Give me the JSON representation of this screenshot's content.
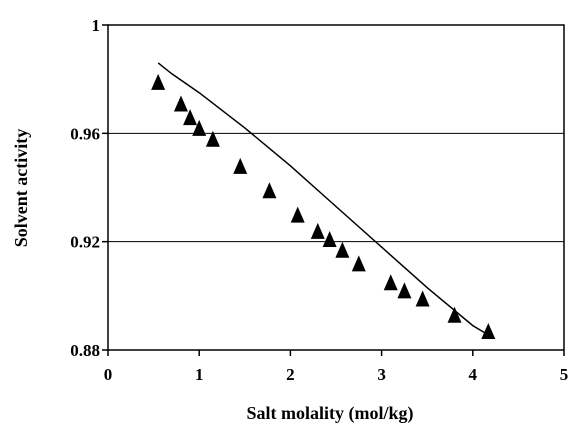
{
  "chart_data": {
    "type": "scatter",
    "xlabel": "Salt molality (mol/kg)",
    "ylabel": "Solvent activity",
    "xlim": [
      0,
      5
    ],
    "ylim": [
      0.88,
      1.0
    ],
    "x_ticks": [
      "0",
      "1",
      "2",
      "3",
      "4",
      "5"
    ],
    "y_ticks": [
      "0.88",
      "0.92",
      "0.96",
      "1"
    ],
    "grid": "horizontal",
    "legend": "none",
    "series": [
      {
        "kind": "points",
        "marker": "triangle",
        "color": "#000000",
        "x": [
          0.55,
          0.8,
          0.9,
          1.0,
          1.15,
          1.45,
          1.77,
          2.08,
          2.3,
          2.43,
          2.57,
          2.75,
          3.1,
          3.25,
          3.45,
          3.8,
          4.17
        ],
        "y": [
          0.979,
          0.971,
          0.966,
          0.962,
          0.958,
          0.948,
          0.939,
          0.93,
          0.924,
          0.921,
          0.917,
          0.912,
          0.905,
          0.902,
          0.899,
          0.893,
          0.887
        ]
      },
      {
        "kind": "line",
        "color": "#000000",
        "x": [
          0.55,
          0.7,
          1.0,
          1.5,
          2.0,
          2.5,
          3.0,
          3.5,
          4.0,
          4.2
        ],
        "y": [
          0.986,
          0.982,
          0.975,
          0.962,
          0.948,
          0.933,
          0.918,
          0.903,
          0.889,
          0.885
        ]
      }
    ]
  }
}
